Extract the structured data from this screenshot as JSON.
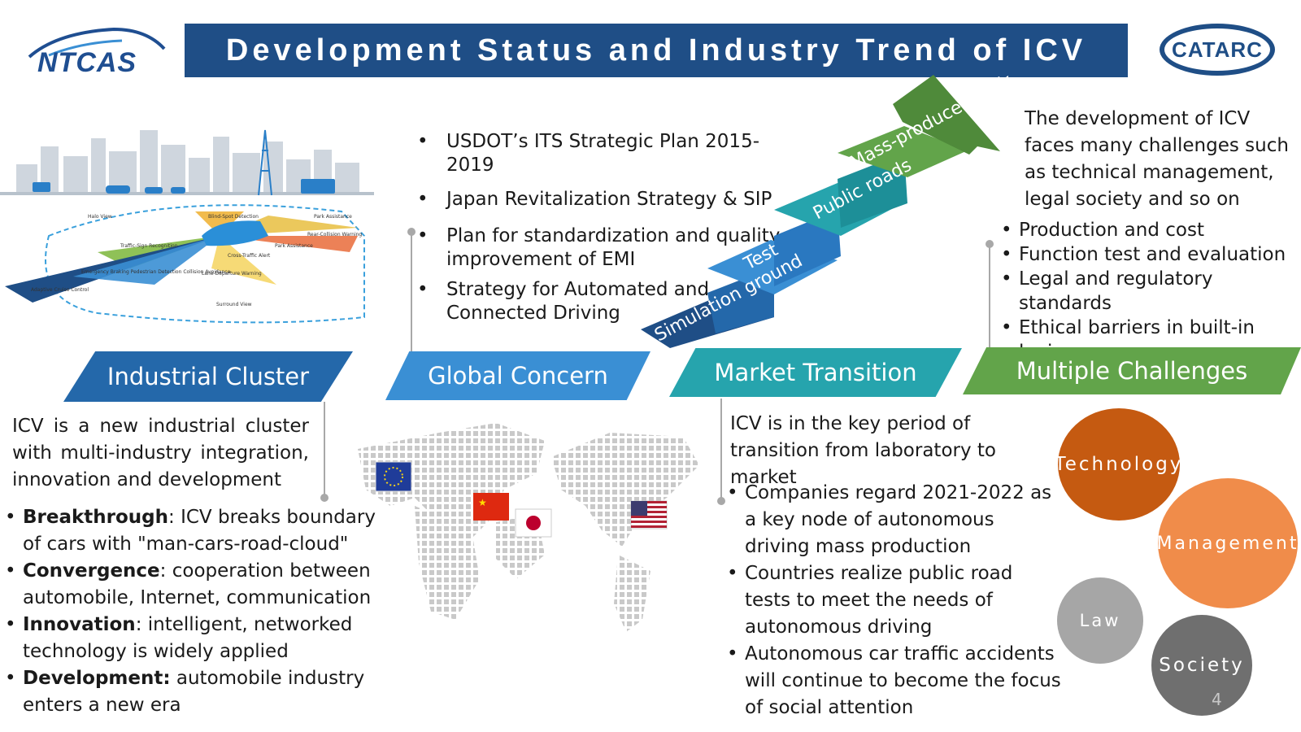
{
  "header": {
    "logo_left": "NTCAS",
    "title": "Development Status and Industry Trend of ICV",
    "logo_right": "CATARC"
  },
  "illustration": {
    "labels": [
      "Halo View",
      "Blind-Spot Detection",
      "Park Assistance",
      "Traffic-Sign Recognition",
      "Rear-Collision Warning",
      "Cross-Traffic Alert",
      "Park Assistance",
      "Emergency Braking Pedestrian Detection Collision Avoidance",
      "Lane-Departure Warning",
      "Adaptive Cruise Control",
      "Surround View"
    ]
  },
  "global": {
    "items": [
      "USDOT’s ITS Strategic Plan 2015-2019",
      "Japan Revitalization Strategy & SIP",
      "Plan for standardization and quality improvement of EMI",
      "Strategy for Automated and Connected Driving"
    ]
  },
  "stairs": {
    "steps": [
      "Simulation ground",
      "Test",
      "Public roads",
      "Mass-produce application"
    ]
  },
  "challenges_intro": "The development of ICV faces many challenges such as technical management, legal society and so on",
  "challenges": {
    "items": [
      "Production and cost",
      "Function test and evaluation",
      "Legal and regulatory standards",
      "Ethical barriers in built-in logic"
    ]
  },
  "banners": {
    "industrial": "Industrial Cluster",
    "global": "Global Concern",
    "market": "Market Transition",
    "challenges": "Multiple Challenges"
  },
  "industrial": {
    "intro": "ICV is a new industrial cluster with multi-industry integration, innovation and development",
    "items": [
      {
        "term": "Breakthrough",
        "text": ": ICV breaks boundary of cars with \"man-cars-road-cloud\""
      },
      {
        "term": "Convergence",
        "text": ": cooperation between automobile, Internet, communication"
      },
      {
        "term": "Innovation",
        "text": ": intelligent, networked technology is widely applied"
      },
      {
        "term": "Development:",
        "text": " automobile industry enters a new era"
      }
    ]
  },
  "market": {
    "intro": "ICV is in the key period of transition from laboratory to market",
    "items": [
      "Companies regard 2021-2022 as a key node of autonomous driving mass production",
      "Countries realize public road tests to meet the needs of autonomous driving",
      "Autonomous car traffic accidents will continue to become the focus of social attention"
    ]
  },
  "circles": {
    "technology": "Technology",
    "management": "Management",
    "law": "Law",
    "society": "Society",
    "colors": {
      "technology": "#c55a11",
      "management": "#f08c4a",
      "law": "#a6a6a6",
      "society": "#6f6f6f"
    }
  },
  "page_number": "4"
}
